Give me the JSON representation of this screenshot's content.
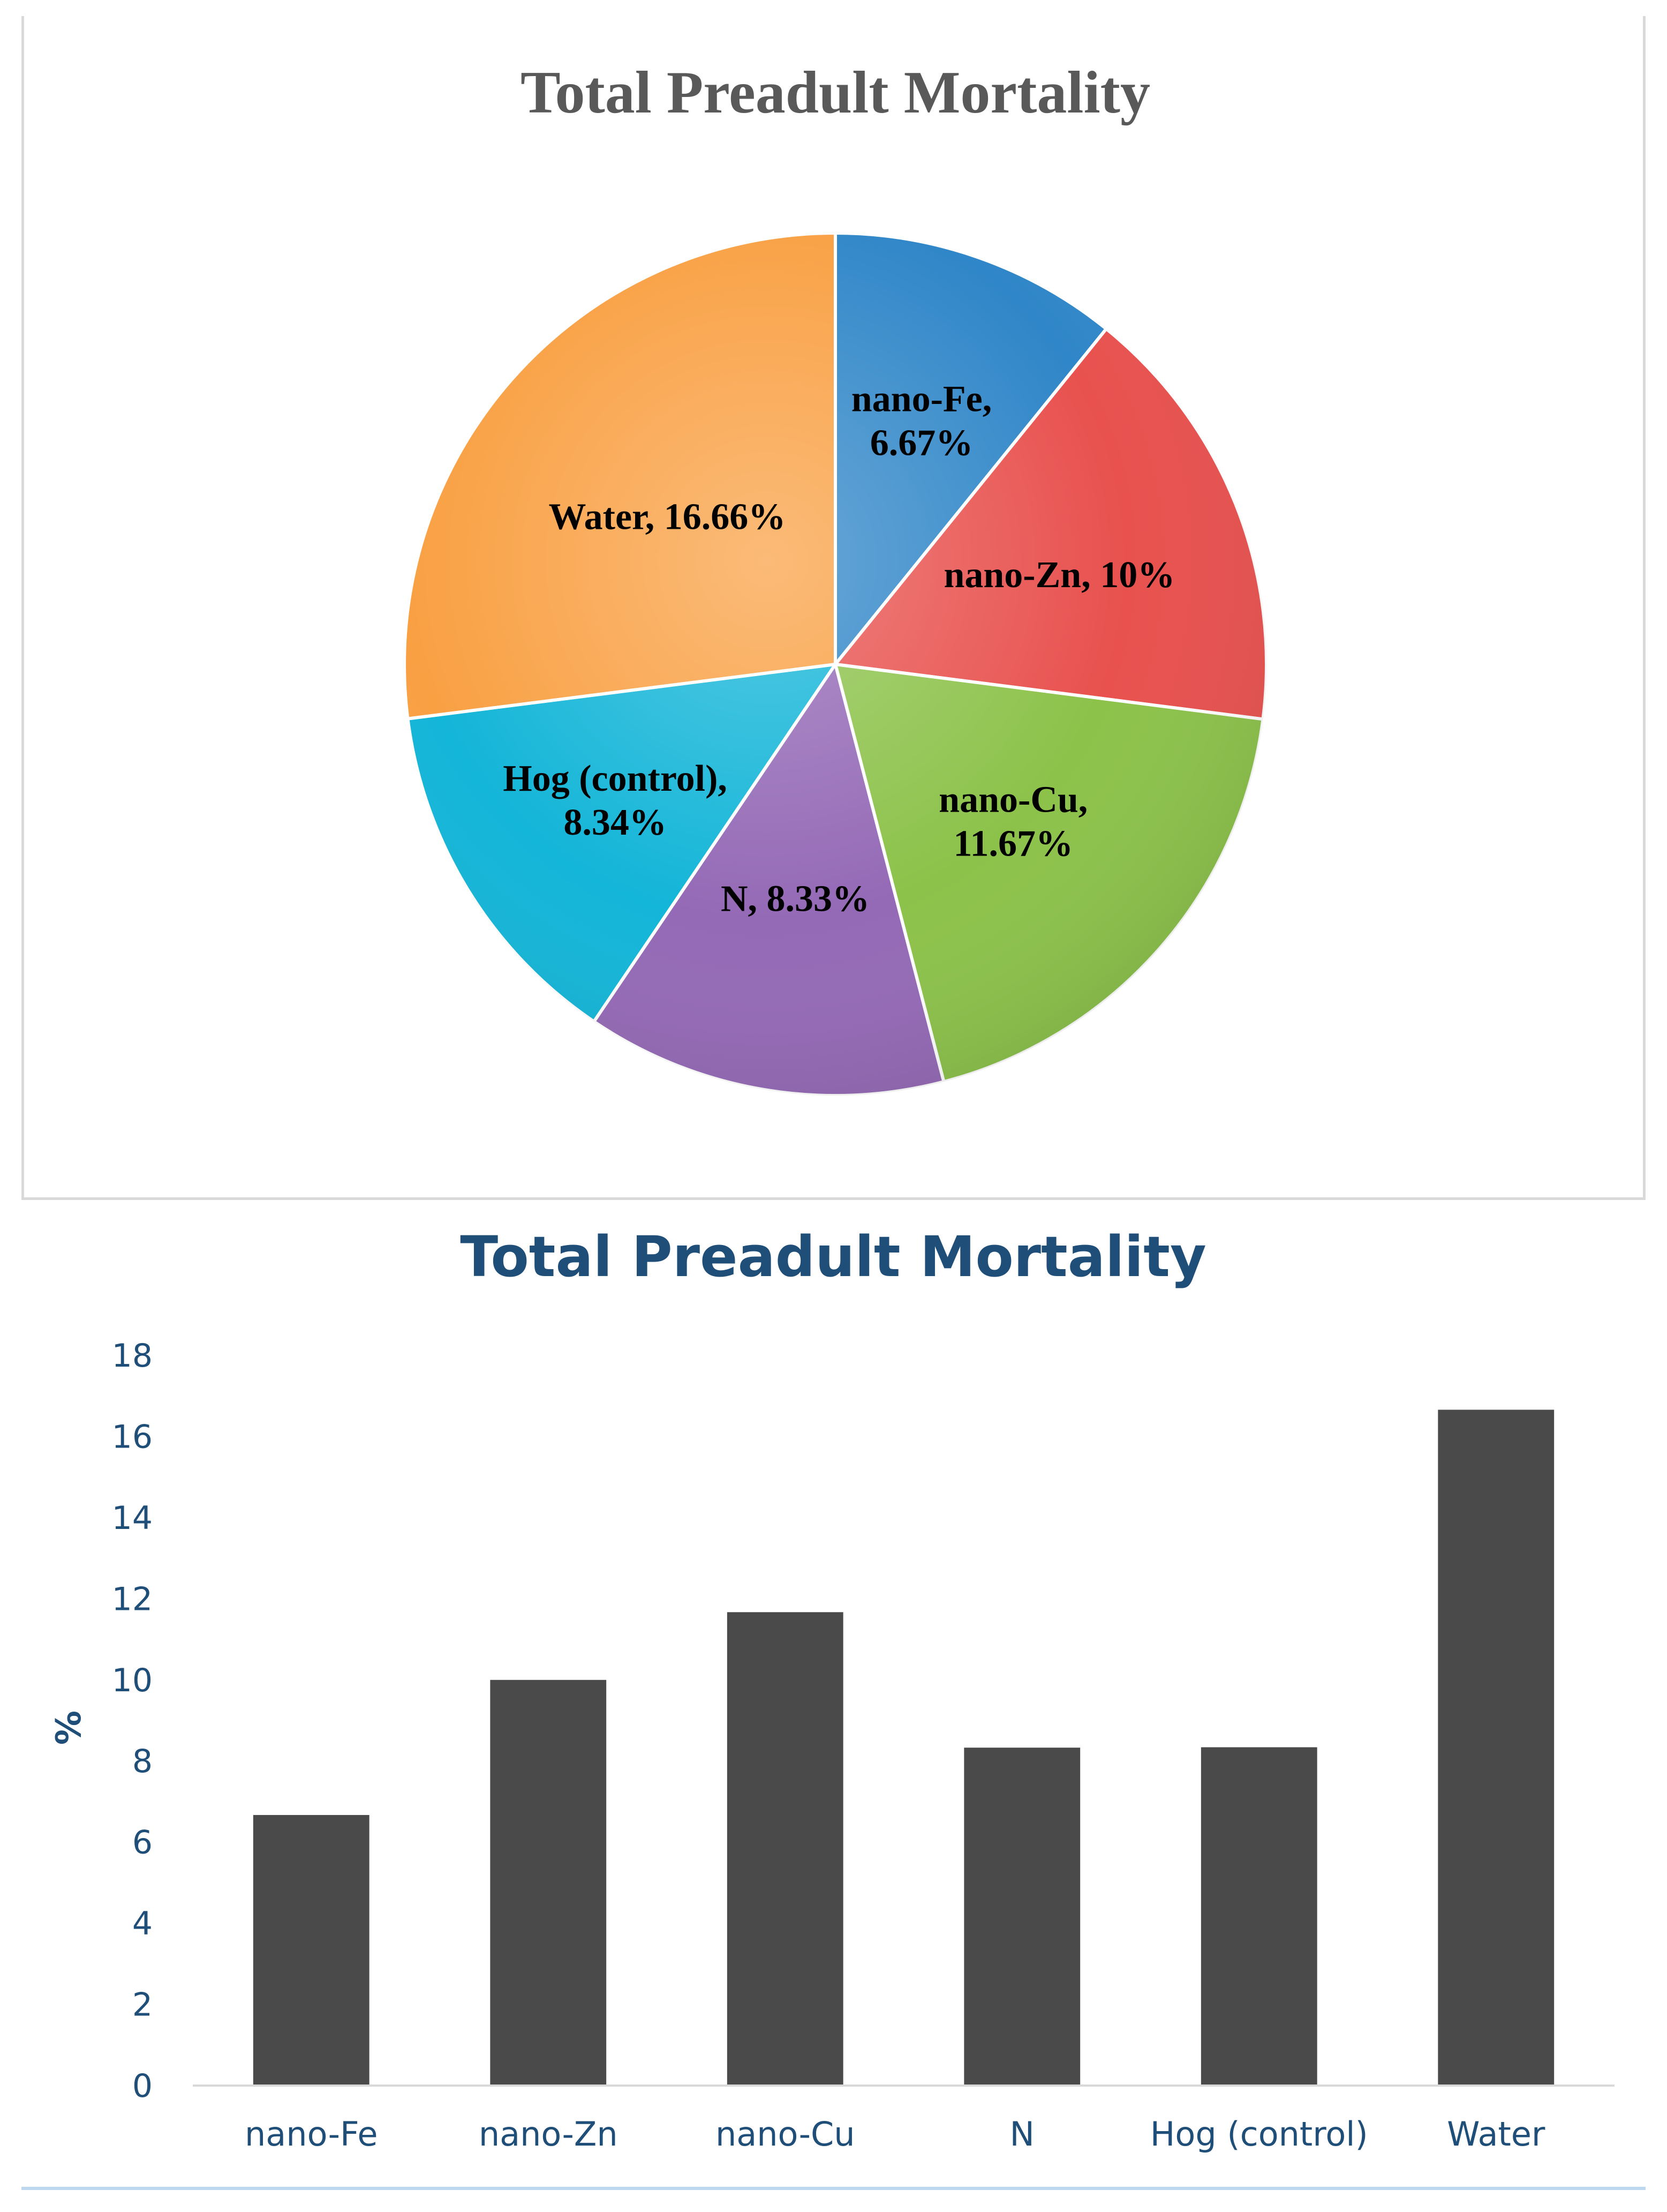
{
  "chart_data": [
    {
      "type": "pie",
      "title": "Total Preadult Mortality",
      "slices": [
        {
          "name": "nano-Fe",
          "value": 6.67,
          "label_lines": [
            "nano-Fe,",
            "6.67%"
          ],
          "color": "#2f86c8"
        },
        {
          "name": "nano-Zn",
          "value": 10,
          "label_lines": [
            "nano-Zn, 10%"
          ],
          "color": "#e8514e"
        },
        {
          "name": "nano-Cu",
          "value": 11.67,
          "label_lines": [
            "nano-Cu,",
            "11.67%"
          ],
          "color": "#8cc24a"
        },
        {
          "name": "N",
          "value": 8.33,
          "label_lines": [
            "N, 8.33%"
          ],
          "color": "#9469b6"
        },
        {
          "name": "Hog (control)",
          "value": 8.34,
          "label_lines": [
            "Hog (control),",
            "8.34%"
          ],
          "color": "#13b5d8"
        },
        {
          "name": "Water",
          "value": 16.66,
          "label_lines": [
            "Water, 16.66%"
          ],
          "color": "#f9a043"
        }
      ]
    },
    {
      "type": "bar",
      "title": "Total Preadult Mortality",
      "categories": [
        "nano-Fe",
        "nano-Zn",
        "nano-Cu",
        "N",
        "Hog (control)",
        "Water"
      ],
      "values": [
        6.67,
        10,
        11.67,
        8.33,
        8.34,
        16.66
      ],
      "xlabel": "",
      "ylabel": "%",
      "ylim": [
        0,
        18
      ],
      "yticks": [
        "0",
        "2",
        "4",
        "6",
        "8",
        "10",
        "12",
        "14",
        "16",
        "18"
      ],
      "bar_color": "#4a4a4a",
      "grid": false
    }
  ]
}
